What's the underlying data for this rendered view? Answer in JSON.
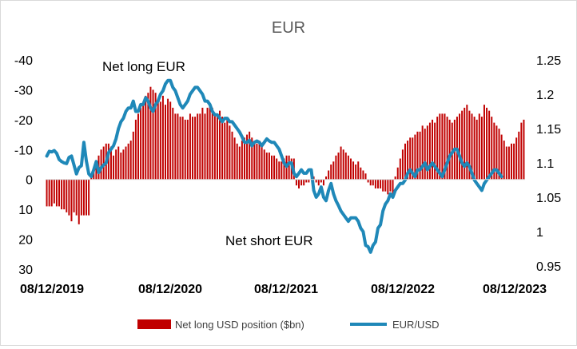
{
  "chart_data": {
    "type": "bar+line",
    "title": "EUR",
    "x_ticks": [
      "08/12/2019",
      "08/12/2020",
      "08/12/2021",
      "08/12/2022",
      "08/12/2023"
    ],
    "left_axis": {
      "ticks": [
        "-40",
        "-30",
        "-20",
        "-10",
        "0",
        "10",
        "20",
        "30"
      ],
      "range": [
        -40,
        30
      ],
      "inverted": true
    },
    "right_axis": {
      "ticks": [
        "1.25",
        "1.2",
        "1.15",
        "1.1",
        "1.05",
        "1",
        "0.95"
      ],
      "range": [
        0.95,
        1.25
      ]
    },
    "annotations": {
      "top": "Net long EUR",
      "bottom": "Net short EUR"
    },
    "colors": {
      "bars": "#c00000",
      "line": "#1f88b8",
      "axis": "#d9d9d9"
    },
    "series": [
      {
        "name": "Net long USD position ($bn)",
        "type": "bar",
        "axis": "left",
        "x_start": "2019-08-12",
        "x_step_days": 7,
        "values": [
          9,
          9,
          9,
          8,
          9,
          9,
          10,
          10,
          11,
          12,
          14,
          11,
          12,
          15,
          12,
          12,
          12,
          12,
          -1,
          -3,
          -6,
          -8,
          -10,
          -11,
          -12,
          -12,
          -11,
          -8,
          -10,
          -11,
          -9,
          -10,
          -11,
          -12,
          -13,
          -16,
          -20,
          -22,
          -24,
          -26,
          -28,
          -29,
          -31,
          -30,
          -29,
          -27,
          -26,
          -28,
          -25,
          -27,
          -26,
          -24,
          -22,
          -22,
          -21,
          -21,
          -20,
          -20,
          -22,
          -21,
          -21,
          -22,
          -22,
          -24,
          -22,
          -24,
          -25,
          -24,
          -22,
          -21,
          -23,
          -21,
          -19,
          -20,
          -18,
          -16,
          -14,
          -12,
          -11,
          -13,
          -14,
          -15,
          -16,
          -14,
          -13,
          -12,
          -13,
          -11,
          -10,
          -9,
          -9,
          -8,
          -8,
          -7,
          -6,
          -6,
          -7,
          -8,
          -8,
          -7,
          -7,
          2,
          3,
          2,
          2,
          1,
          1,
          0,
          -1,
          1,
          2,
          1,
          2,
          -1,
          -3,
          -5,
          -6,
          -8,
          -9,
          -11,
          -10,
          -9,
          -8,
          -7,
          -6,
          -5,
          -6,
          -4,
          -3,
          -2,
          1,
          2,
          2,
          3,
          3,
          3,
          4,
          4,
          5,
          4,
          5,
          -1,
          -4,
          -7,
          -10,
          -12,
          -13,
          -14,
          -14,
          -15,
          -16,
          -16,
          -18,
          -17,
          -18,
          -19,
          -20,
          -19,
          -21,
          -22,
          -22,
          -22,
          -21,
          -20,
          -19,
          -20,
          -21,
          -22,
          -23,
          -24,
          -25,
          -23,
          -22,
          -21,
          -20,
          -22,
          -21,
          -25,
          -24,
          -23,
          -21,
          -19,
          -18,
          -17,
          -15,
          -13,
          -11,
          -11,
          -12,
          -12,
          -14,
          -16,
          -19,
          -20
        ]
      },
      {
        "name": "EUR/USD",
        "type": "line",
        "axis": "right",
        "x_start": "2019-08-12",
        "x_step_days": 7,
        "values": [
          1.11,
          1.117,
          1.116,
          1.118,
          1.114,
          1.105,
          1.102,
          1.1,
          1.099,
          1.108,
          1.11,
          1.097,
          1.084,
          1.093,
          1.096,
          1.13,
          1.103,
          1.084,
          1.08,
          1.09,
          1.102,
          1.086,
          1.093,
          1.097,
          1.1,
          1.115,
          1.12,
          1.125,
          1.135,
          1.15,
          1.16,
          1.165,
          1.175,
          1.18,
          1.18,
          1.19,
          1.175,
          1.175,
          1.185,
          1.185,
          1.195,
          1.19,
          1.18,
          1.175,
          1.185,
          1.19,
          1.2,
          1.205,
          1.215,
          1.22,
          1.22,
          1.21,
          1.205,
          1.195,
          1.185,
          1.18,
          1.185,
          1.19,
          1.2,
          1.205,
          1.21,
          1.21,
          1.205,
          1.2,
          1.19,
          1.19,
          1.185,
          1.175,
          1.17,
          1.17,
          1.165,
          1.16,
          1.165,
          1.165,
          1.16,
          1.16,
          1.155,
          1.15,
          1.145,
          1.138,
          1.13,
          1.13,
          1.133,
          1.125,
          1.13,
          1.132,
          1.13,
          1.125,
          1.13,
          1.135,
          1.132,
          1.13,
          1.13,
          1.125,
          1.12,
          1.11,
          1.1,
          1.095,
          1.1,
          1.1,
          1.085,
          1.08,
          1.085,
          1.09,
          1.085,
          1.085,
          1.09,
          1.09,
          1.06,
          1.05,
          1.055,
          1.065,
          1.05,
          1.045,
          1.06,
          1.07,
          1.055,
          1.045,
          1.038,
          1.03,
          1.025,
          1.02,
          1.015,
          1.02,
          1.02,
          1.02,
          1.015,
          1.005,
          1,
          0.98,
          0.978,
          0.97,
          0.98,
          0.985,
          1.005,
          1.01,
          1.03,
          1.04,
          1.045,
          1.055,
          1.05,
          1.06,
          1.065,
          1.07,
          1.07,
          1.075,
          1.085,
          1.09,
          1.085,
          1.08,
          1.09,
          1.09,
          1.095,
          1.1,
          1.09,
          1.095,
          1.1,
          1.095,
          1.09,
          1.085,
          1.08,
          1.09,
          1.1,
          1.11,
          1.115,
          1.12,
          1.12,
          1.11,
          1.1,
          1.095,
          1.1,
          1.095,
          1.085,
          1.075,
          1.07,
          1.065,
          1.06,
          1.07,
          1.075,
          1.08,
          1.085,
          1.09,
          1.09,
          1.085,
          1.08
        ]
      }
    ]
  }
}
